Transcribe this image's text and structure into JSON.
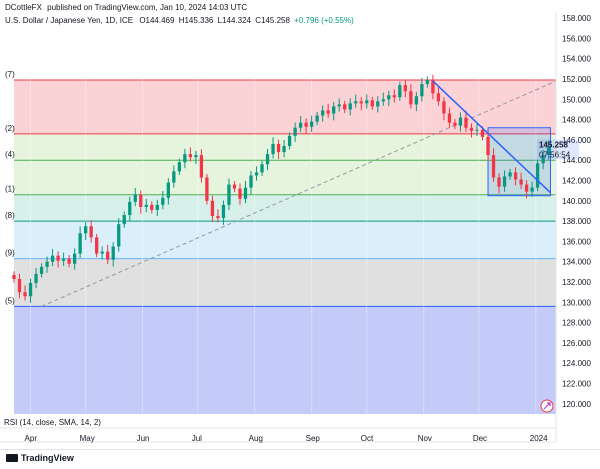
{
  "header": {
    "author": "DCottleFX",
    "published": "published on TradingView.com, Jan 10, 2024 14:03 UTC",
    "symbol": "U.S. Dollar / Japanese Yen, 1D, ICE",
    "open": "O144.469",
    "high": "H145.336",
    "low": "L144.324",
    "close": "C145.258",
    "change": "+0.796 (+0.55%)"
  },
  "price_label": {
    "value": "145.258",
    "countdown": "07:56:54"
  },
  "rsi_label": "RSI (14, close, SMA, 14, 2)",
  "footer": {
    "brand": "TradingView"
  },
  "colors": {
    "up": "#089981",
    "down": "#f23645",
    "trend": "#2962ff",
    "dashed": "#9598a1"
  },
  "chart_data": {
    "type": "candlestick",
    "title": "U.S. Dollar / Japanese Yen, 1D, ICE",
    "y_axis": {
      "ticks": [
        "120.000",
        "122.000",
        "124.000",
        "126.000",
        "128.000",
        "130.000",
        "132.000",
        "134.000",
        "136.000",
        "138.000",
        "140.000",
        "142.000",
        "144.000",
        "146.000",
        "148.000",
        "150.000",
        "152.000",
        "154.000",
        "156.000",
        "158.000"
      ],
      "ylim": [
        119.0,
        158.6
      ]
    },
    "x_axis": {
      "ticks": [
        "Apr",
        "May",
        "Jun",
        "Jul",
        "Aug",
        "Sep",
        "Oct",
        "Nov",
        "Dec",
        "2024"
      ],
      "tick_days": [
        9,
        39,
        70,
        100,
        131,
        162,
        192,
        223,
        253,
        284
      ],
      "xlim": [
        0,
        295
      ]
    },
    "fib_levels": [
      {
        "label": "(7)",
        "price": 151.9,
        "fill": "#fbd2d5",
        "line": "#f23645"
      },
      {
        "label": "(2)",
        "price": 146.6,
        "fill": "#e6f4dd",
        "line": "#f23645"
      },
      {
        "label": "(4)",
        "price": 144.0,
        "fill": "#e6f4dd",
        "line": "#4caf50"
      },
      {
        "label": "(1)",
        "price": 140.6,
        "fill": "#d8f0ea",
        "line": "#4caf50"
      },
      {
        "label": "(8)",
        "price": 138.0,
        "fill": "#dbeffb",
        "line": "#089981"
      },
      {
        "label": "(9)",
        "price": 134.3,
        "fill": "#e0e0e0",
        "line": "#64b5f6"
      },
      {
        "label": "(5)",
        "price": 129.6,
        "fill": "#c5cbf8",
        "line": "#2962ff"
      }
    ],
    "dashed_trendline": {
      "from": {
        "day": 15,
        "price": 129.6
      },
      "to": {
        "day": 295,
        "price": 151.8
      }
    },
    "descending_trendline": {
      "from": {
        "day": 228,
        "price": 151.8
      },
      "to": {
        "day": 292,
        "price": 140.8
      }
    },
    "range_box": {
      "day_from": 258,
      "day_to": 292,
      "price_from": 140.5,
      "price_to": 147.2
    },
    "closes": [
      {
        "day": 0,
        "close": 132.3
      },
      {
        "day": 3,
        "close": 131.0
      },
      {
        "day": 6,
        "close": 130.6
      },
      {
        "day": 9,
        "close": 131.9
      },
      {
        "day": 12,
        "close": 132.8
      },
      {
        "day": 15,
        "close": 133.5
      },
      {
        "day": 18,
        "close": 134.0
      },
      {
        "day": 21,
        "close": 134.6
      },
      {
        "day": 24,
        "close": 134.1
      },
      {
        "day": 27,
        "close": 134.3
      },
      {
        "day": 30,
        "close": 133.8
      },
      {
        "day": 33,
        "close": 134.8
      },
      {
        "day": 36,
        "close": 136.8
      },
      {
        "day": 39,
        "close": 137.5
      },
      {
        "day": 42,
        "close": 136.4
      },
      {
        "day": 45,
        "close": 134.8
      },
      {
        "day": 48,
        "close": 135.0
      },
      {
        "day": 51,
        "close": 134.2
      },
      {
        "day": 54,
        "close": 135.5
      },
      {
        "day": 57,
        "close": 137.7
      },
      {
        "day": 60,
        "close": 138.6
      },
      {
        "day": 63,
        "close": 139.9
      },
      {
        "day": 66,
        "close": 140.6
      },
      {
        "day": 69,
        "close": 139.4
      },
      {
        "day": 72,
        "close": 139.6
      },
      {
        "day": 75,
        "close": 139.1
      },
      {
        "day": 78,
        "close": 139.6
      },
      {
        "day": 81,
        "close": 140.3
      },
      {
        "day": 84,
        "close": 141.8
      },
      {
        "day": 87,
        "close": 142.9
      },
      {
        "day": 90,
        "close": 143.8
      },
      {
        "day": 93,
        "close": 144.6
      },
      {
        "day": 96,
        "close": 144.3
      },
      {
        "day": 99,
        "close": 144.5
      },
      {
        "day": 102,
        "close": 142.3
      },
      {
        "day": 105,
        "close": 140.0
      },
      {
        "day": 108,
        "close": 138.5
      },
      {
        "day": 111,
        "close": 138.3
      },
      {
        "day": 114,
        "close": 139.6
      },
      {
        "day": 117,
        "close": 141.6
      },
      {
        "day": 120,
        "close": 141.2
      },
      {
        "day": 123,
        "close": 140.2
      },
      {
        "day": 126,
        "close": 141.3
      },
      {
        "day": 129,
        "close": 142.5
      },
      {
        "day": 132,
        "close": 142.8
      },
      {
        "day": 135,
        "close": 143.6
      },
      {
        "day": 138,
        "close": 144.6
      },
      {
        "day": 141,
        "close": 145.6
      },
      {
        "day": 144,
        "close": 144.8
      },
      {
        "day": 147,
        "close": 145.4
      },
      {
        "day": 150,
        "close": 146.4
      },
      {
        "day": 153,
        "close": 147.2
      },
      {
        "day": 156,
        "close": 147.7
      },
      {
        "day": 159,
        "close": 147.3
      },
      {
        "day": 162,
        "close": 147.8
      },
      {
        "day": 165,
        "close": 148.4
      },
      {
        "day": 168,
        "close": 148.9
      },
      {
        "day": 171,
        "close": 148.6
      },
      {
        "day": 174,
        "close": 149.3
      },
      {
        "day": 177,
        "close": 149.5
      },
      {
        "day": 180,
        "close": 149.0
      },
      {
        "day": 183,
        "close": 149.6
      },
      {
        "day": 186,
        "close": 149.8
      },
      {
        "day": 189,
        "close": 149.6
      },
      {
        "day": 192,
        "close": 149.9
      },
      {
        "day": 195,
        "close": 149.3
      },
      {
        "day": 198,
        "close": 149.8
      },
      {
        "day": 201,
        "close": 150.0
      },
      {
        "day": 204,
        "close": 150.4
      },
      {
        "day": 207,
        "close": 150.2
      },
      {
        "day": 210,
        "close": 151.4
      },
      {
        "day": 213,
        "close": 150.8
      },
      {
        "day": 216,
        "close": 149.5
      },
      {
        "day": 219,
        "close": 150.3
      },
      {
        "day": 222,
        "close": 151.5
      },
      {
        "day": 225,
        "close": 151.9
      },
      {
        "day": 228,
        "close": 150.6
      },
      {
        "day": 231,
        "close": 149.8
      },
      {
        "day": 234,
        "close": 148.6
      },
      {
        "day": 237,
        "close": 147.7
      },
      {
        "day": 240,
        "close": 147.4
      },
      {
        "day": 243,
        "close": 148.2
      },
      {
        "day": 246,
        "close": 147.2
      },
      {
        "day": 249,
        "close": 146.9
      },
      {
        "day": 252,
        "close": 147.0
      },
      {
        "day": 255,
        "close": 146.3
      },
      {
        "day": 258,
        "close": 144.5
      },
      {
        "day": 261,
        "close": 142.3
      },
      {
        "day": 264,
        "close": 141.4
      },
      {
        "day": 267,
        "close": 142.4
      },
      {
        "day": 270,
        "close": 142.8
      },
      {
        "day": 273,
        "close": 142.1
      },
      {
        "day": 276,
        "close": 141.6
      },
      {
        "day": 279,
        "close": 140.9
      },
      {
        "day": 282,
        "close": 141.3
      },
      {
        "day": 285,
        "close": 143.7
      },
      {
        "day": 288,
        "close": 144.5
      },
      {
        "day": 291,
        "close": 145.26
      }
    ]
  }
}
